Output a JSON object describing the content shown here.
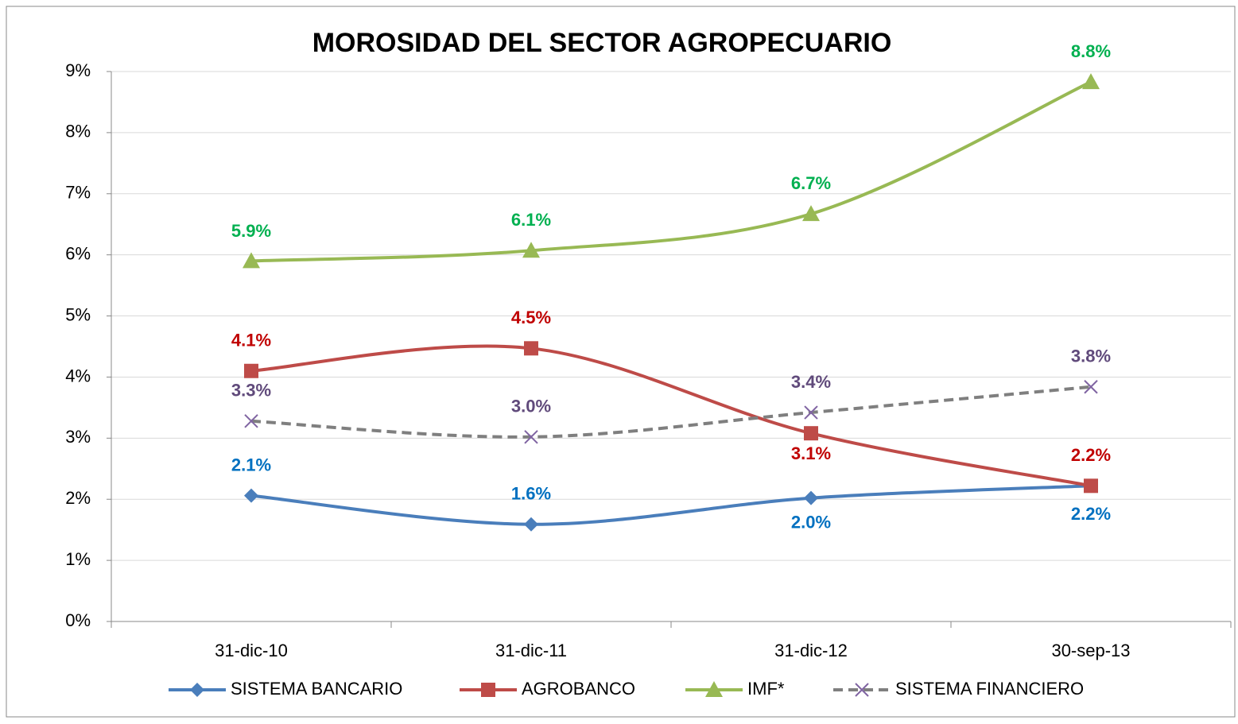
{
  "chart_data": {
    "type": "line",
    "title": "MOROSIDAD DEL SECTOR AGROPECUARIO",
    "categories": [
      "31-dic-10",
      "31-dic-11",
      "31-dic-12",
      "30-sep-13"
    ],
    "ylim": [
      0,
      9
    ],
    "yticks": [
      {
        "value": 0,
        "label": "0%"
      },
      {
        "value": 1,
        "label": "1%"
      },
      {
        "value": 2,
        "label": "2%"
      },
      {
        "value": 3,
        "label": "3%"
      },
      {
        "value": 4,
        "label": "4%"
      },
      {
        "value": 5,
        "label": "5%"
      },
      {
        "value": 6,
        "label": "6%"
      },
      {
        "value": 7,
        "label": "7%"
      },
      {
        "value": 8,
        "label": "8%"
      },
      {
        "value": 9,
        "label": "9%"
      }
    ],
    "grid": true,
    "legend": "bottom",
    "series": [
      {
        "name": "SISTEMA BANCARIO",
        "color": "#4a7ebb",
        "label_color": "#0070c0",
        "marker": "diamond",
        "dashed": false,
        "values": [
          2.06,
          1.59,
          2.02,
          2.22
        ],
        "value_labels": [
          "2.1%",
          "1.6%",
          "2.0%",
          "2.2%"
        ]
      },
      {
        "name": "AGROBANCO",
        "color": "#be4b48",
        "label_color": "#c00000",
        "marker": "square",
        "dashed": false,
        "values": [
          4.1,
          4.47,
          3.08,
          2.22
        ],
        "value_labels": [
          "4.1%",
          "4.5%",
          "3.1%",
          "2.2%"
        ]
      },
      {
        "name": "IMF*",
        "color": "#98b954",
        "label_color": "#00b050",
        "marker": "triangle",
        "dashed": false,
        "values": [
          5.9,
          6.07,
          6.67,
          8.83
        ],
        "value_labels": [
          "5.9%",
          "6.1%",
          "6.7%",
          "8.8%"
        ]
      },
      {
        "name": "SISTEMA FINANCIERO",
        "color": "#7f7f7f",
        "marker_color": "#8064a2",
        "label_color": "#604a7b",
        "marker": "x",
        "dashed": true,
        "values": [
          3.28,
          3.02,
          3.42,
          3.84
        ],
        "value_labels": [
          "3.3%",
          "3.0%",
          "3.4%",
          "3.8%"
        ]
      }
    ]
  }
}
